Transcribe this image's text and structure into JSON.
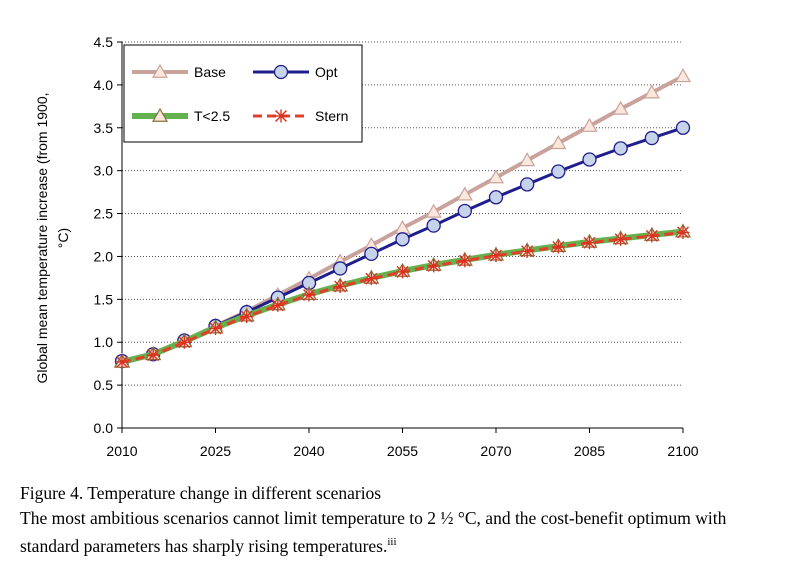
{
  "chart_data": {
    "type": "line",
    "ylabel_line1": "Global mean temperature increase (from 1900,",
    "ylabel_line2": "°C)",
    "xlabel": "",
    "xlim": [
      2010,
      2100
    ],
    "ylim": [
      0.0,
      4.5
    ],
    "x_ticks": [
      "2010",
      "2025",
      "2040",
      "2055",
      "2070",
      "2085",
      "2100"
    ],
    "y_ticks": [
      "0.0",
      "0.5",
      "1.0",
      "1.5",
      "2.0",
      "2.5",
      "3.0",
      "3.5",
      "4.0",
      "4.5"
    ],
    "grid": "horizontal dotted",
    "legend_position": "top-left",
    "x": [
      2010,
      2015,
      2020,
      2025,
      2030,
      2035,
      2040,
      2045,
      2050,
      2055,
      2060,
      2065,
      2070,
      2075,
      2080,
      2085,
      2090,
      2095,
      2100
    ],
    "series": [
      {
        "name": "Base",
        "color": "#c9a29c",
        "marker": "triangle",
        "dash": "solid",
        "values": [
          0.78,
          0.86,
          1.02,
          1.19,
          1.36,
          1.55,
          1.74,
          1.94,
          2.13,
          2.33,
          2.52,
          2.72,
          2.92,
          3.12,
          3.32,
          3.52,
          3.72,
          3.91,
          4.1
        ]
      },
      {
        "name": "Opt",
        "color": "#1f1e8c",
        "marker": "circle",
        "dash": "solid",
        "values": [
          0.78,
          0.86,
          1.02,
          1.19,
          1.35,
          1.52,
          1.69,
          1.86,
          2.03,
          2.2,
          2.36,
          2.53,
          2.69,
          2.84,
          2.99,
          3.13,
          3.26,
          3.38,
          3.5
        ]
      },
      {
        "name": "T<2.5",
        "color": "#66b14f",
        "marker": "triangle",
        "dash": "solid",
        "values": [
          0.77,
          0.86,
          1.01,
          1.17,
          1.31,
          1.44,
          1.56,
          1.66,
          1.75,
          1.83,
          1.9,
          1.96,
          2.02,
          2.07,
          2.12,
          2.17,
          2.21,
          2.25,
          2.29
        ]
      },
      {
        "name": "Stern",
        "color": "#e0402a",
        "marker": "asterisk",
        "dash": "dashed",
        "values": [
          0.77,
          0.85,
          1.0,
          1.16,
          1.3,
          1.43,
          1.55,
          1.65,
          1.74,
          1.82,
          1.89,
          1.95,
          2.01,
          2.06,
          2.11,
          2.16,
          2.2,
          2.24,
          2.28
        ]
      }
    ]
  },
  "caption": {
    "title": "Figure 4. Temperature change in different scenarios",
    "body": "The most ambitious scenarios cannot limit temperature to 2 ½ °C, and the cost-benefit optimum with standard parameters has sharply rising temperatures.",
    "footnote_mark": "iii"
  }
}
